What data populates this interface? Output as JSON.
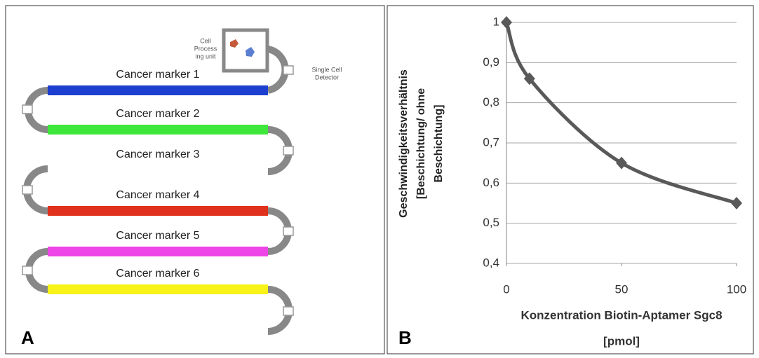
{
  "panel_a": {
    "label": "A",
    "cell_unit": [
      "Cell",
      "Process",
      "ing unit"
    ],
    "detector": [
      "Single Cell",
      "Detector"
    ],
    "markers": [
      {
        "label": "Cancer marker 1",
        "color": "#1d3fd0"
      },
      {
        "label": "Cancer marker 2",
        "color": "#3ee83a"
      },
      {
        "label": "Cancer marker 3",
        "color": null
      },
      {
        "label": "Cancer marker 4",
        "color": "#e0311c"
      },
      {
        "label": "Cancer marker 5",
        "color": "#ee45e6"
      },
      {
        "label": "Cancer marker 6",
        "color": "#f7f218"
      }
    ]
  },
  "chart_data": {
    "type": "line",
    "panel_label": "B",
    "y_label": [
      "Geschwindigkeitsverhältnis",
      "[Beschichtung/ ohne",
      "Beschichtung]"
    ],
    "x_label": [
      "Konzentration Biotin-Aptamer Sgc8",
      "[pmol]"
    ],
    "x": [
      0,
      10,
      50,
      100
    ],
    "values": [
      1,
      0.86,
      0.65,
      0.55
    ],
    "color": "#595959",
    "xlim": [
      0,
      100
    ],
    "xticks": [
      0,
      50,
      100
    ],
    "ylim": [
      0.4,
      1
    ],
    "yticks": [
      {
        "value": 0.4,
        "label": "0,4"
      },
      {
        "value": 0.5,
        "label": "0,5"
      },
      {
        "value": 0.6,
        "label": "0,6"
      },
      {
        "value": 0.7,
        "label": "0,7"
      },
      {
        "value": 0.8,
        "label": "0,8"
      },
      {
        "value": 0.9,
        "label": "0,9"
      },
      {
        "value": 1,
        "label": "1"
      }
    ],
    "grid": true
  }
}
